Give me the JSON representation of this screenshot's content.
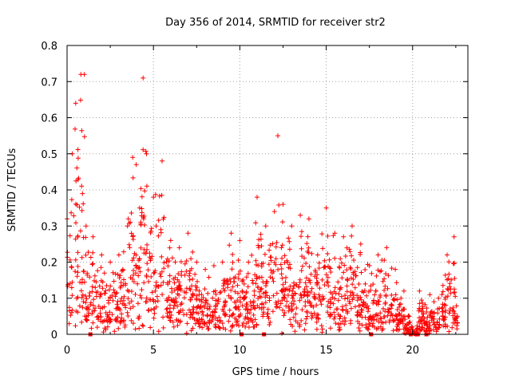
{
  "chart_data": {
    "type": "scatter",
    "title": "Day 356 of 2014, SRMTID for receiver str2",
    "xlabel": "GPS time / hours",
    "ylabel": "SRMTID / TECUs",
    "xlim": [
      0,
      23.2
    ],
    "ylim": [
      0,
      0.8
    ],
    "xticks": [
      0,
      5,
      10,
      15,
      20
    ],
    "xtick_labels": [
      "0",
      "5",
      "10",
      "15",
      "20"
    ],
    "yticks": [
      0,
      0.1,
      0.2,
      0.3,
      0.4,
      0.5,
      0.6,
      0.7,
      0.8
    ],
    "ytick_labels": [
      "0",
      "0.1",
      "0.2",
      "0.3",
      "0.4",
      "0.5",
      "0.6",
      "0.7",
      "0.8"
    ],
    "grid": true,
    "marker": "plus",
    "series": [
      {
        "name": "SRMTID",
        "color": "#ff0000",
        "envelope": [
          {
            "x": 0.0,
            "max": 0.32
          },
          {
            "x": 0.3,
            "max": 0.5
          },
          {
            "x": 0.5,
            "max": 0.64
          },
          {
            "x": 0.8,
            "max": 0.72
          },
          {
            "x": 1.0,
            "max": 0.72
          },
          {
            "x": 1.1,
            "max": 0.3
          },
          {
            "x": 1.5,
            "max": 0.27
          },
          {
            "x": 2.0,
            "max": 0.22
          },
          {
            "x": 2.5,
            "max": 0.2
          },
          {
            "x": 3.0,
            "max": 0.22
          },
          {
            "x": 3.5,
            "max": 0.3
          },
          {
            "x": 3.8,
            "max": 0.49
          },
          {
            "x": 4.0,
            "max": 0.47
          },
          {
            "x": 4.2,
            "max": 0.35
          },
          {
            "x": 4.4,
            "max": 0.71
          },
          {
            "x": 4.6,
            "max": 0.5
          },
          {
            "x": 5.0,
            "max": 0.38
          },
          {
            "x": 5.5,
            "max": 0.48
          },
          {
            "x": 6.0,
            "max": 0.26
          },
          {
            "x": 6.5,
            "max": 0.24
          },
          {
            "x": 7.0,
            "max": 0.28
          },
          {
            "x": 7.5,
            "max": 0.2
          },
          {
            "x": 8.0,
            "max": 0.18
          },
          {
            "x": 8.5,
            "max": 0.19
          },
          {
            "x": 9.0,
            "max": 0.2
          },
          {
            "x": 9.5,
            "max": 0.28
          },
          {
            "x": 10.0,
            "max": 0.26
          },
          {
            "x": 10.5,
            "max": 0.2
          },
          {
            "x": 11.0,
            "max": 0.38
          },
          {
            "x": 11.5,
            "max": 0.3
          },
          {
            "x": 12.0,
            "max": 0.34
          },
          {
            "x": 12.2,
            "max": 0.55
          },
          {
            "x": 12.5,
            "max": 0.36
          },
          {
            "x": 13.0,
            "max": 0.3
          },
          {
            "x": 13.5,
            "max": 0.33
          },
          {
            "x": 14.0,
            "max": 0.32
          },
          {
            "x": 14.5,
            "max": 0.22
          },
          {
            "x": 15.0,
            "max": 0.35
          },
          {
            "x": 15.5,
            "max": 0.28
          },
          {
            "x": 16.0,
            "max": 0.27
          },
          {
            "x": 16.5,
            "max": 0.3
          },
          {
            "x": 17.0,
            "max": 0.25
          },
          {
            "x": 17.5,
            "max": 0.19
          },
          {
            "x": 18.0,
            "max": 0.22
          },
          {
            "x": 18.5,
            "max": 0.24
          },
          {
            "x": 19.0,
            "max": 0.18
          },
          {
            "x": 19.5,
            "max": 0.12
          },
          {
            "x": 19.8,
            "max": 0.05
          },
          {
            "x": 20.2,
            "max": 0.0
          },
          {
            "x": 20.4,
            "max": 0.12
          },
          {
            "x": 21.0,
            "max": 0.11
          },
          {
            "x": 21.5,
            "max": 0.1
          },
          {
            "x": 22.0,
            "max": 0.22
          },
          {
            "x": 22.4,
            "max": 0.27
          },
          {
            "x": 22.6,
            "max": 0.05
          }
        ],
        "zero_points_x": [
          1.35,
          10.1,
          11.4,
          17.6,
          19.9,
          20.3,
          20.8
        ]
      }
    ]
  }
}
